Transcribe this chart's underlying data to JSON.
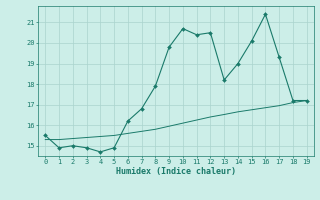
{
  "x": [
    0,
    1,
    2,
    3,
    4,
    5,
    6,
    7,
    8,
    9,
    10,
    11,
    12,
    13,
    14,
    15,
    16,
    17,
    18,
    19
  ],
  "y_main": [
    15.5,
    14.9,
    15.0,
    14.9,
    14.7,
    14.9,
    16.2,
    16.8,
    17.9,
    19.8,
    20.7,
    20.4,
    20.5,
    18.2,
    19.0,
    20.1,
    21.4,
    19.3,
    17.2,
    17.2
  ],
  "y_trend": [
    15.3,
    15.3,
    15.35,
    15.4,
    15.45,
    15.5,
    15.6,
    15.7,
    15.8,
    15.95,
    16.1,
    16.25,
    16.4,
    16.52,
    16.65,
    16.75,
    16.85,
    16.95,
    17.1,
    17.2
  ],
  "line_color": "#1a7a6a",
  "background_color": "#cceee8",
  "grid_color": "#aad4ce",
  "xlabel": "Humidex (Indice chaleur)",
  "ylabel_ticks": [
    15,
    16,
    17,
    18,
    19,
    20,
    21
  ],
  "xtick_labels": [
    "0",
    "1",
    "2",
    "3",
    "4",
    "5",
    "6",
    "7",
    "8",
    "9",
    "10",
    "11",
    "12",
    "13",
    "14",
    "15",
    "16",
    "17",
    "18",
    "19"
  ],
  "xlim": [
    -0.5,
    19.5
  ],
  "ylim": [
    14.5,
    21.8
  ]
}
